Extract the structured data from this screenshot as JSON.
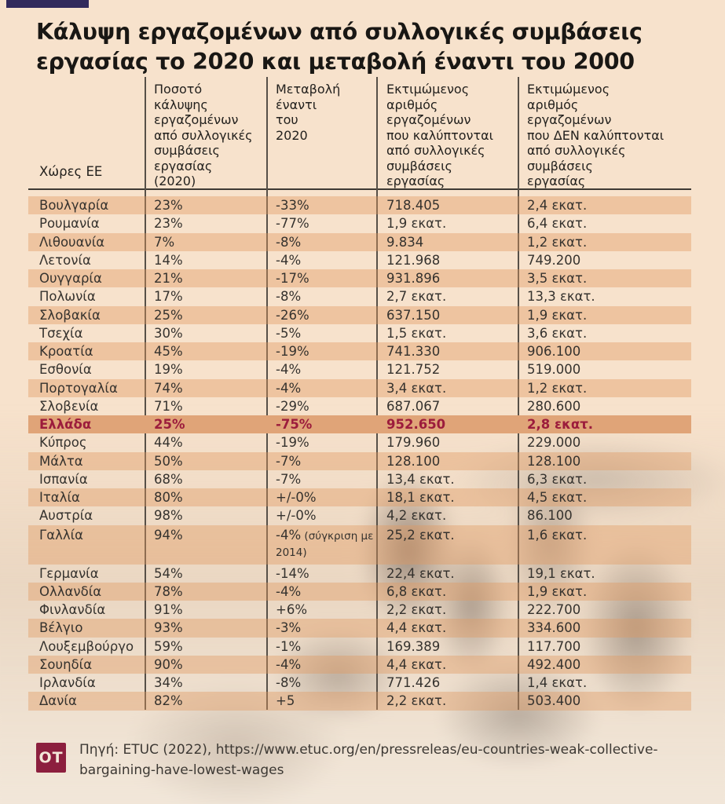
{
  "colors": {
    "navy_bar": "#322a5c",
    "accent_red": "#9c1c3c",
    "highlight_row_bg": "#e0a478",
    "row_stripe": "#eec5a1",
    "page_bg": "#f7e2cc",
    "logo_bg": "#8c1f3e"
  },
  "header": {
    "title": "Κάλυψη εργαζομένων από συλλογικές συμβάσεις εργασίας το 2020 και μεταβολή έναντι του 2000"
  },
  "chart_data": {
    "type": "table",
    "title": "Κάλυψη εργαζομένων από συλλογικές συμβάσεις εργασίας το 2020 και μεταβολή έναντι του 2000",
    "columns": [
      "Χώρες ΕΕ",
      "Ποσοτό\nκάλυψης\nεργαζομένων\nαπό συλλογικές\nσυμβάσεις\nεργασίας\n(2020)",
      "Μεταβολή\nέναντι\nτου\n2020",
      "Εκτιμώμενος\nαριθμός\nεργαζομένων\nπου καλύπτονται\nαπό συλλογικές\nσυμβάσεις\nεργασίας",
      "Εκτιμώμενος\nαριθμός\nεργαζομένων\nπου ΔΕΝ καλύπτονται\nαπό συλλογικές\nσυμβάσεις\nεργασίας"
    ],
    "highlight_row": "Ελλάδα",
    "rows": [
      {
        "country": "Βουλγαρία",
        "coverage": "23%",
        "change": "-33%",
        "covered": "718.405",
        "not_covered": "2,4 εκατ."
      },
      {
        "country": "Ρουμανία",
        "coverage": "23%",
        "change": "-77%",
        "covered": "1,9 εκατ.",
        "not_covered": "6,4 εκατ."
      },
      {
        "country": "Λιθουανία",
        "coverage": "7%",
        "change": "-8%",
        "covered": "9.834",
        "not_covered": "1,2 εκατ."
      },
      {
        "country": "Λετονία",
        "coverage": "14%",
        "change": "-4%",
        "covered": "121.968",
        "not_covered": "749.200"
      },
      {
        "country": "Ουγγαρία",
        "coverage": "21%",
        "change": "-17%",
        "covered": "931.896",
        "not_covered": "3,5 εκατ."
      },
      {
        "country": "Πολωνία",
        "coverage": "17%",
        "change": "-8%",
        "covered": "2,7 εκατ.",
        "not_covered": "13,3 εκατ."
      },
      {
        "country": "Σλοβακία",
        "coverage": "25%",
        "change": "-26%",
        "covered": "637.150",
        "not_covered": "1,9 εκατ."
      },
      {
        "country": "Τσεχία",
        "coverage": "30%",
        "change": "-5%",
        "covered": "1,5 εκατ.",
        "not_covered": "3,6 εκατ."
      },
      {
        "country": "Κροατία",
        "coverage": "45%",
        "change": "-19%",
        "covered": "741.330",
        "not_covered": "906.100"
      },
      {
        "country": "Εσθονία",
        "coverage": "19%",
        "change": "-4%",
        "covered": "121.752",
        "not_covered": "519.000"
      },
      {
        "country": "Πορτογαλία",
        "coverage": "74%",
        "change": "-4%",
        "covered": "3,4 εκατ.",
        "not_covered": "1,2 εκατ."
      },
      {
        "country": "Σλοβενία",
        "coverage": "71%",
        "change": "-29%",
        "covered": "687.067",
        "not_covered": "280.600"
      },
      {
        "country": "Ελλάδα",
        "coverage": "25%",
        "change": "-75%",
        "covered": "952.650",
        "not_covered": "2,8 εκατ.",
        "highlight": true
      },
      {
        "country": "Κύπρος",
        "coverage": "44%",
        "change": "-19%",
        "covered": "179.960",
        "not_covered": "229.000"
      },
      {
        "country": "Μάλτα",
        "coverage": "50%",
        "change": "-7%",
        "covered": "128.100",
        "not_covered": "128.100"
      },
      {
        "country": "Ισπανία",
        "coverage": "68%",
        "change": "-7%",
        "covered": "13,4 εκατ.",
        "not_covered": "6,3 εκατ."
      },
      {
        "country": "Ιταλία",
        "coverage": "80%",
        "change": "+/-0%",
        "covered": "18,1 εκατ.",
        "not_covered": "4,5 εκατ."
      },
      {
        "country": "Αυστρία",
        "coverage": "98%",
        "change": "+/-0%",
        "covered": "4,2 εκατ.",
        "not_covered": "86.100"
      },
      {
        "country": "Γαλλία",
        "coverage": "94%",
        "change": "-4%",
        "change_note": "(σύγκριση με 2014)",
        "covered": "25,2 εκατ.",
        "not_covered": "1,6 εκατ."
      },
      {
        "country": "Γερμανία",
        "coverage": "54%",
        "change": "-14%",
        "covered": "22,4 εκατ.",
        "not_covered": "19,1 εκατ."
      },
      {
        "country": "Ολλανδία",
        "coverage": "78%",
        "change": "-4%",
        "covered": "6,8 εκατ.",
        "not_covered": "1,9 εκατ."
      },
      {
        "country": "Φινλανδία",
        "coverage": "91%",
        "change": "+6%",
        "covered": "2,2 εκατ.",
        "not_covered": "222.700"
      },
      {
        "country": "Βέλγιο",
        "coverage": "93%",
        "change": "-3%",
        "covered": "4,4 εκατ.",
        "not_covered": "334.600"
      },
      {
        "country": "Λουξεμβούργο",
        "coverage": "59%",
        "change": "-1%",
        "covered": "169.389",
        "not_covered": "117.700"
      },
      {
        "country": "Σουηδία",
        "coverage": "90%",
        "change": "-4%",
        "covered": "4,4 εκατ.",
        "not_covered": "492.400"
      },
      {
        "country": "Ιρλανδία",
        "coverage": "34%",
        "change": "-8%",
        "covered": "771.426",
        "not_covered": "1,4 εκατ."
      },
      {
        "country": "Δανία",
        "coverage": "82%",
        "change": "+5",
        "covered": "2,2 εκατ.",
        "not_covered": "503.400"
      }
    ]
  },
  "footer": {
    "logo_text": "ΟΤ",
    "source": "Πηγή: ETUC (2022), https://www.etuc.org/en/pressreleas/eu-countries-weak-collective-bargaining-have-lowest-wages"
  }
}
